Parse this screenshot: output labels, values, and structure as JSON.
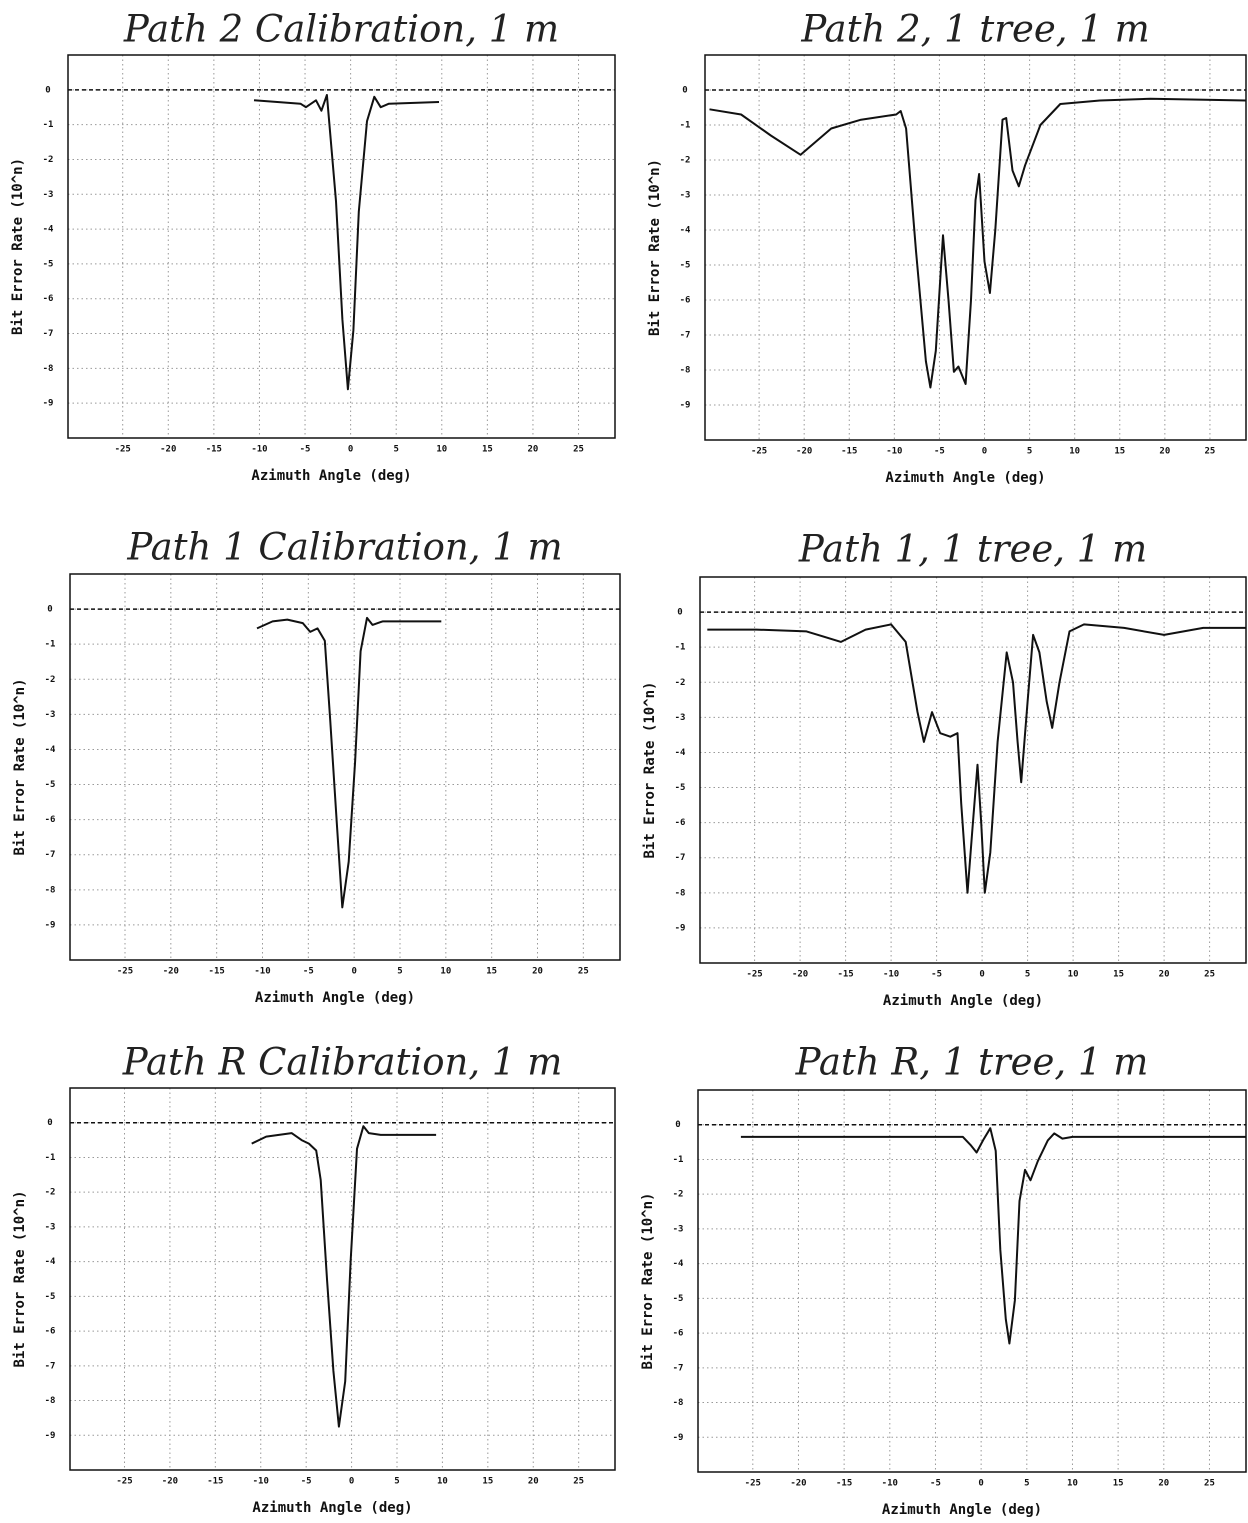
{
  "chart_data": [
    {
      "type": "line",
      "title": "Path 2 Calibration, 1 m",
      "x_label": "Azimuth Angle (deg)",
      "y_label": "Bit Error Rate (10^n)",
      "xlim": [
        -31,
        29
      ],
      "ylim": [
        -10,
        1
      ],
      "xticks": [
        -25,
        -20,
        -15,
        -10,
        -5,
        0,
        5,
        10,
        15,
        20,
        25
      ],
      "yticks": [
        0,
        -1,
        -2,
        -3,
        -4,
        -5,
        -6,
        -7,
        -8,
        -9
      ],
      "grid": true,
      "reference_y": 0,
      "color": "#111111",
      "x": [
        -10.6,
        -5.5,
        -4.9,
        -3.8,
        -3.2,
        -2.6,
        -1.6,
        -0.9,
        -0.3,
        0.3,
        0.9,
        1.8,
        2.6,
        3.3,
        4.2,
        9.7
      ],
      "values": [
        -0.3,
        -0.4,
        -0.5,
        -0.3,
        -0.6,
        -0.15,
        -3.2,
        -6.6,
        -8.6,
        -6.9,
        -3.5,
        -0.9,
        -0.2,
        -0.5,
        -0.4,
        -0.35
      ]
    },
    {
      "type": "line",
      "title": "Path 2, 1 tree, 1 m",
      "x_label": "Azimuth Angle (deg)",
      "y_label": "Bit Error Rate (10^n)",
      "xlim": [
        -31,
        29
      ],
      "ylim": [
        -10,
        1
      ],
      "xticks": [
        -25,
        -20,
        -15,
        -10,
        -5,
        0,
        5,
        10,
        15,
        20,
        25
      ],
      "yticks": [
        0,
        -1,
        -2,
        -3,
        -4,
        -5,
        -6,
        -7,
        -8,
        -9
      ],
      "grid": true,
      "reference_y": 0,
      "color": "#111111",
      "x": [
        -30.5,
        -27.0,
        -23.7,
        -20.4,
        -17.0,
        -13.7,
        -9.8,
        -9.3,
        -8.7,
        -7.6,
        -6.5,
        -6.0,
        -5.4,
        -4.6,
        -4.0,
        -3.4,
        -2.9,
        -2.1,
        -1.5,
        -1.0,
        -0.6,
        0.0,
        0.6,
        1.2,
        2.0,
        2.4,
        3.1,
        3.8,
        4.5,
        6.2,
        8.4,
        12.8,
        18.4,
        29
      ],
      "values": [
        -0.55,
        -0.7,
        -1.3,
        -1.85,
        -1.1,
        -0.85,
        -0.7,
        -0.6,
        -1.1,
        -4.6,
        -7.75,
        -8.5,
        -7.45,
        -4.15,
        -6.0,
        -8.05,
        -7.9,
        -8.4,
        -6.0,
        -3.15,
        -2.4,
        -4.9,
        -5.8,
        -4.0,
        -0.85,
        -0.8,
        -2.3,
        -2.75,
        -2.15,
        -1.0,
        -0.4,
        -0.3,
        -0.25,
        -0.3
      ]
    },
    {
      "type": "line",
      "title": "Path 1 Calibration, 1 m",
      "x_label": "Azimuth Angle (deg)",
      "y_label": "Bit Error Rate (10^n)",
      "xlim": [
        -31,
        29
      ],
      "ylim": [
        -10,
        1
      ],
      "xticks": [
        -25,
        -20,
        -15,
        -10,
        -5,
        0,
        5,
        10,
        15,
        20,
        25
      ],
      "yticks": [
        0,
        -1,
        -2,
        -3,
        -4,
        -5,
        -6,
        -7,
        -8,
        -9
      ],
      "grid": true,
      "reference_y": 0,
      "color": "#111111",
      "x": [
        -10.6,
        -8.9,
        -7.3,
        -5.6,
        -4.8,
        -4.0,
        -3.2,
        -2.6,
        -1.9,
        -1.3,
        -0.6,
        0.1,
        0.7,
        1.4,
        2.0,
        3.1,
        9.5
      ],
      "values": [
        -0.55,
        -0.35,
        -0.3,
        -0.4,
        -0.65,
        -0.55,
        -0.9,
        -3.2,
        -6.1,
        -8.5,
        -7.2,
        -4.35,
        -1.2,
        -0.25,
        -0.45,
        -0.35,
        -0.35
      ]
    },
    {
      "type": "line",
      "title": "Path 1, 1 tree, 1 m",
      "x_label": "Azimuth Angle (deg)",
      "y_label": "Bit Error Rate (10^n)",
      "xlim": [
        -31,
        29
      ],
      "ylim": [
        -10,
        1
      ],
      "xticks": [
        -25,
        -20,
        -15,
        -10,
        -5,
        0,
        5,
        10,
        15,
        20,
        25
      ],
      "yticks": [
        0,
        -1,
        -2,
        -3,
        -4,
        -5,
        -6,
        -7,
        -8,
        -9
      ],
      "grid": true,
      "reference_y": 0,
      "color": "#111111",
      "x": [
        -30.2,
        -24.8,
        -19.3,
        -15.5,
        -12.8,
        -10.0,
        -8.4,
        -7.1,
        -6.4,
        -5.5,
        -4.6,
        -3.5,
        -2.7,
        -2.3,
        -1.6,
        -1.1,
        -0.5,
        -0.1,
        0.3,
        0.9,
        1.7,
        2.7,
        3.4,
        3.9,
        4.3,
        5.0,
        5.6,
        6.3,
        7.1,
        7.7,
        8.5,
        9.6,
        11.2,
        15.6,
        20.0,
        24.3,
        29
      ],
      "values": [
        -0.5,
        -0.5,
        -0.55,
        -0.85,
        -0.5,
        -0.35,
        -0.85,
        -2.85,
        -3.7,
        -2.85,
        -3.45,
        -3.55,
        -3.45,
        -5.45,
        -8.0,
        -6.3,
        -4.35,
        -6.0,
        -8.0,
        -6.85,
        -3.7,
        -1.15,
        -2.0,
        -3.7,
        -4.85,
        -2.55,
        -0.65,
        -1.15,
        -2.55,
        -3.3,
        -2.0,
        -0.55,
        -0.35,
        -0.45,
        -0.65,
        -0.45,
        -0.45
      ]
    },
    {
      "type": "line",
      "title": "Path R Calibration, 1 m",
      "x_label": "Azimuth Angle (deg)",
      "y_label": "Bit Error Rate (10^n)",
      "xlim": [
        -31,
        29
      ],
      "ylim": [
        -10,
        1
      ],
      "xticks": [
        -25,
        -20,
        -15,
        -10,
        -5,
        0,
        5,
        10,
        15,
        20,
        25
      ],
      "yticks": [
        0,
        -1,
        -2,
        -3,
        -4,
        -5,
        -6,
        -7,
        -8,
        -9
      ],
      "grid": true,
      "reference_y": 0,
      "color": "#111111",
      "x": [
        -11.0,
        -9.4,
        -6.6,
        -5.5,
        -4.7,
        -3.9,
        -3.4,
        -2.7,
        -2.0,
        -1.4,
        -0.7,
        -0.1,
        0.6,
        1.3,
        1.9,
        3.2,
        9.3
      ],
      "values": [
        -0.6,
        -0.4,
        -0.3,
        -0.5,
        -0.6,
        -0.8,
        -1.65,
        -4.55,
        -7.15,
        -8.75,
        -7.45,
        -3.95,
        -0.75,
        -0.1,
        -0.3,
        -0.35,
        -0.35
      ]
    },
    {
      "type": "line",
      "title": "Path R, 1 tree, 1 m",
      "x_label": "Azimuth Angle (deg)",
      "y_label": "Bit Error Rate (10^n)",
      "xlim": [
        -31,
        29
      ],
      "ylim": [
        -10,
        1
      ],
      "xticks": [
        -25,
        -20,
        -15,
        -10,
        -5,
        0,
        5,
        10,
        15,
        20,
        25
      ],
      "yticks": [
        0,
        -1,
        -2,
        -3,
        -4,
        -5,
        -6,
        -7,
        -8,
        -9
      ],
      "grid": true,
      "reference_y": 0,
      "color": "#111111",
      "x": [
        -26.3,
        -19.5,
        -8.6,
        -2.0,
        -1.1,
        -0.5,
        0.2,
        1.0,
        1.6,
        2.1,
        2.7,
        3.1,
        3.7,
        4.2,
        4.8,
        5.4,
        6.2,
        7.3,
        8.0,
        8.9,
        10.0,
        29
      ],
      "values": [
        -0.35,
        -0.35,
        -0.35,
        -0.35,
        -0.6,
        -0.8,
        -0.45,
        -0.1,
        -0.75,
        -3.6,
        -5.6,
        -6.3,
        -5.05,
        -2.2,
        -1.3,
        -1.6,
        -1.05,
        -0.45,
        -0.25,
        -0.4,
        -0.35,
        -0.35
      ]
    }
  ]
}
